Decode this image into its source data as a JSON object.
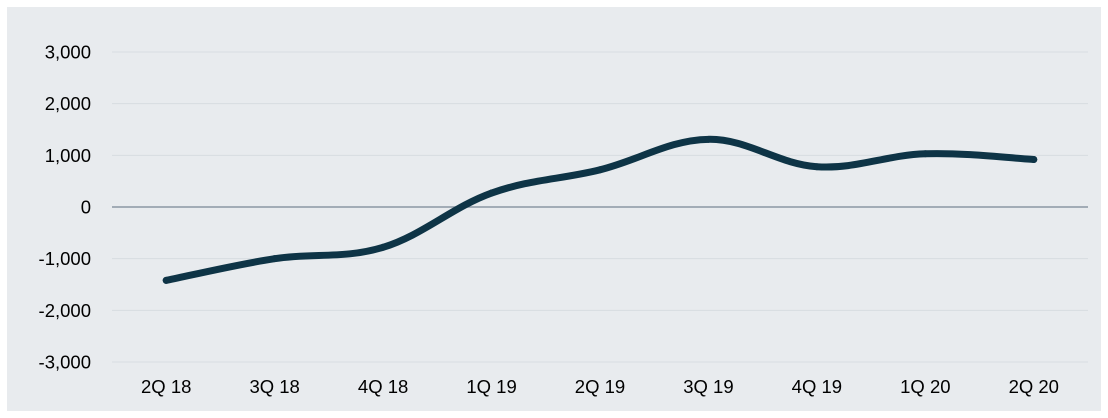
{
  "chart_data": {
    "type": "line",
    "title": "",
    "xlabel": "",
    "ylabel": "",
    "categories": [
      "2Q 18",
      "3Q 18",
      "4Q 18",
      "1Q 19",
      "2Q 19",
      "3Q 19",
      "4Q 19",
      "1Q 20",
      "2Q 20"
    ],
    "series": [
      {
        "values": [
          -1420,
          -1000,
          -780,
          270,
          720,
          1310,
          780,
          1030,
          920
        ]
      }
    ],
    "ylim": [
      -3000,
      3000
    ],
    "yticks": [
      3000,
      2000,
      1000,
      0,
      -1000,
      -2000,
      -3000
    ],
    "ytick_labels": [
      "3,000",
      "2,000",
      "1,000",
      "0",
      "-1,000",
      "-2,000",
      "-3,000"
    ],
    "grid": true,
    "legend": "none",
    "colors": {
      "line": "#0e3446",
      "background": "#e8ebee",
      "grid": "#d7dce1",
      "zero_line": "#8a97a4"
    }
  }
}
